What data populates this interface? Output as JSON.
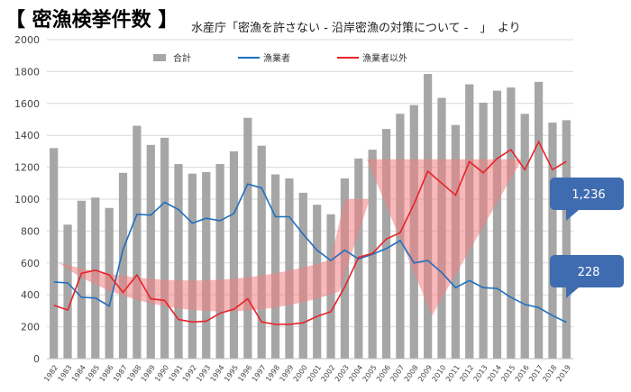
{
  "title": "【 密漁検挙件数 】",
  "source": "水産庁「密漁を許さない - 沿岸密漁の対策について -　」　より",
  "chart_data": {
    "type": "bar",
    "ylim": [
      0,
      2000
    ],
    "yticks": [
      0,
      200,
      400,
      600,
      800,
      1000,
      1200,
      1400,
      1600,
      1800,
      2000
    ],
    "grid": true,
    "legend_position": "top",
    "categories": [
      "1982",
      "1983",
      "1984",
      "1985",
      "1986",
      "1987",
      "1988",
      "1989",
      "1990",
      "1991",
      "1992",
      "1993",
      "1994",
      "1995",
      "1996",
      "1997",
      "1998",
      "1999",
      "2000",
      "2001",
      "2002",
      "2003",
      "2004",
      "2005",
      "2006",
      "2007",
      "2008",
      "2009",
      "2010",
      "2011",
      "2012",
      "2013",
      "2014",
      "2015",
      "2016",
      "2017",
      "2018",
      "2019"
    ],
    "series": [
      {
        "name": "合計",
        "kind": "bar",
        "color": "#a6a6a6",
        "values": [
          1320,
          840,
          990,
          1010,
          945,
          1165,
          1460,
          1340,
          1385,
          1220,
          1160,
          1170,
          1220,
          1300,
          1510,
          1335,
          1155,
          1130,
          1040,
          965,
          905,
          1130,
          1255,
          1310,
          1440,
          1535,
          1590,
          1785,
          1635,
          1465,
          1720,
          1605,
          1680,
          1700,
          1535,
          1735,
          1480,
          1495
        ]
      },
      {
        "name": "漁業者",
        "kind": "line",
        "color": "#1f6fbf",
        "values": [
          480,
          475,
          385,
          380,
          330,
          685,
          905,
          900,
          980,
          935,
          850,
          880,
          865,
          910,
          1095,
          1070,
          890,
          890,
          780,
          680,
          615,
          680,
          625,
          655,
          690,
          740,
          600,
          615,
          540,
          445,
          490,
          445,
          440,
          385,
          340,
          320,
          270,
          228
        ]
      },
      {
        "name": "漁業者以外",
        "kind": "line",
        "color": "#e8232a",
        "values": [
          335,
          305,
          535,
          555,
          525,
          415,
          525,
          375,
          365,
          245,
          230,
          235,
          285,
          310,
          375,
          230,
          215,
          215,
          225,
          265,
          295,
          450,
          635,
          660,
          750,
          790,
          970,
          1175,
          1100,
          1025,
          1235,
          1165,
          1255,
          1310,
          1185,
          1360,
          1185,
          1236
        ]
      }
    ],
    "callouts": [
      {
        "text": "1,236",
        "series": "漁業者以外"
      },
      {
        "text": "228",
        "series": "漁業者"
      }
    ]
  }
}
